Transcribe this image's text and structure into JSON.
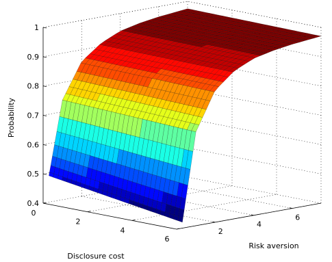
{
  "chart_data": {
    "type": "surface",
    "title": "",
    "xlabel": "Disclosure cost",
    "ylabel": "Risk aversion",
    "zlabel": "Probability",
    "xlim": [
      0,
      6
    ],
    "ylim": [
      0,
      7.5
    ],
    "zlim": [
      0.4,
      1
    ],
    "xticks": [
      "0",
      "2",
      "4",
      "6"
    ],
    "yticks": [
      "2",
      "4",
      "6"
    ],
    "zticks": [
      "0.4",
      "0.5",
      "0.6",
      "0.7",
      "0.8",
      "0.9",
      "1"
    ],
    "grid": true,
    "colormap": "jet",
    "surface_samples": {
      "risk_aversion": [
        0.3,
        1,
        2,
        3,
        4,
        5,
        6,
        7.5
      ],
      "probability_at_disclosure_cost_0": [
        0.49,
        0.74,
        0.86,
        0.91,
        0.94,
        0.955,
        0.965,
        0.975
      ],
      "probability_at_disclosure_cost_6": [
        0.42,
        0.72,
        0.85,
        0.905,
        0.935,
        0.95,
        0.96,
        0.97
      ]
    }
  }
}
